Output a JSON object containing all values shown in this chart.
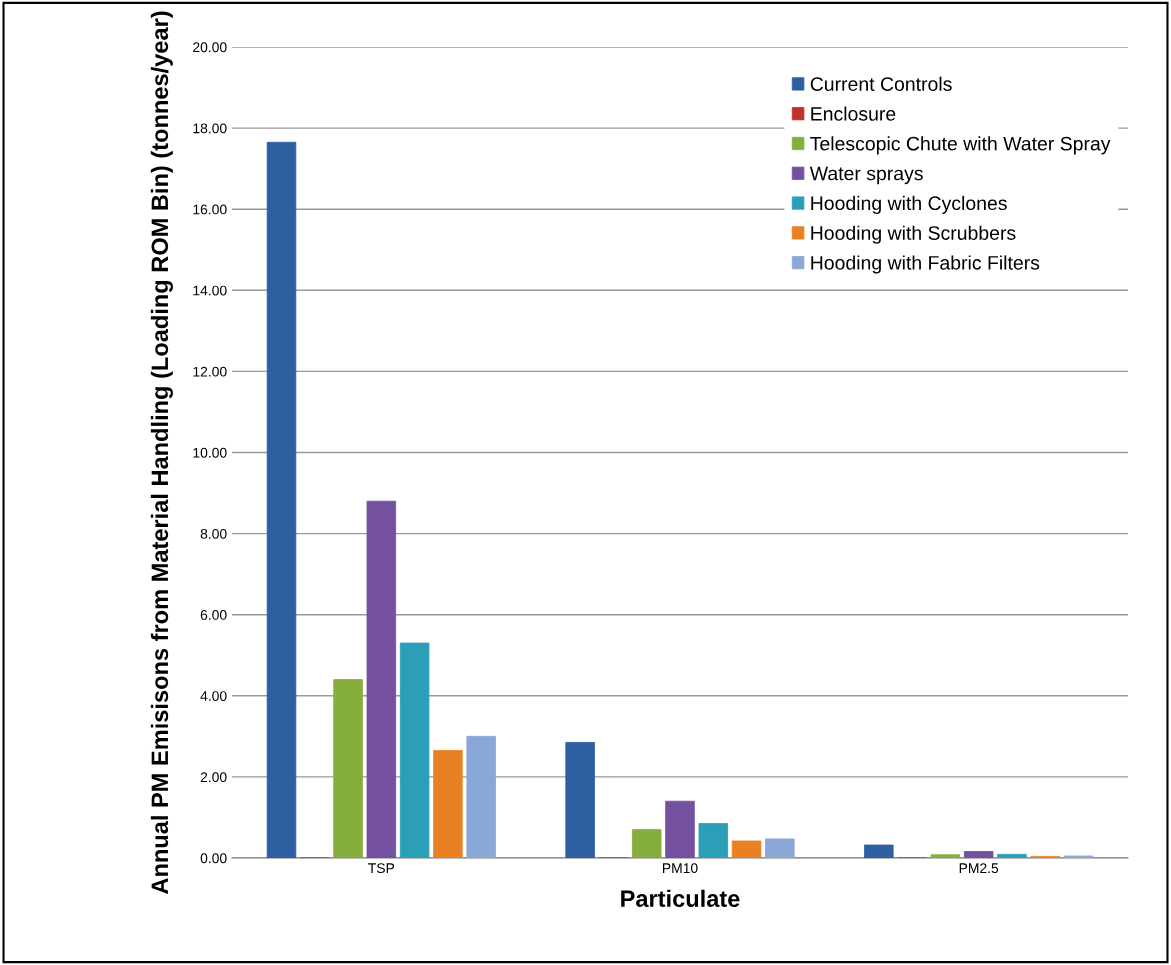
{
  "chart_data": {
    "type": "bar",
    "xlabel": "Particulate",
    "ylabel": "Annual PM Emisisons from Material Handling (Loading ROM Bin) (tonnes/year)",
    "categories": [
      "TSP",
      "PM10",
      "PM2.5"
    ],
    "series": [
      {
        "name": "Current Controls",
        "color": "#2e5fa0",
        "values": [
          17.65,
          2.85,
          0.32
        ]
      },
      {
        "name": "Enclosure",
        "color": "#c0302c",
        "values": [
          0,
          0,
          0
        ]
      },
      {
        "name": "Telescopic Chute with Water Spray",
        "color": "#86ae3c",
        "values": [
          4.4,
          0.7,
          0.08
        ]
      },
      {
        "name": "Water sprays",
        "color": "#7350a0",
        "values": [
          8.8,
          1.4,
          0.16
        ]
      },
      {
        "name": "Hooding with Cyclones",
        "color": "#2b9fb8",
        "values": [
          5.3,
          0.85,
          0.09
        ]
      },
      {
        "name": "Hooding with Scrubbers",
        "color": "#ea8024",
        "values": [
          2.65,
          0.42,
          0.04
        ]
      },
      {
        "name": "Hooding with Fabric Filters",
        "color": "#8aa8d6",
        "values": [
          3.0,
          0.47,
          0.05
        ]
      }
    ],
    "ylim": [
      0,
      20
    ],
    "yticks": [
      {
        "value": 0,
        "label": "0.00"
      },
      {
        "value": 2,
        "label": "2.00"
      },
      {
        "value": 4,
        "label": "4.00"
      },
      {
        "value": 6,
        "label": "6.00"
      },
      {
        "value": 8,
        "label": "8.00"
      },
      {
        "value": 10,
        "label": "10.00"
      },
      {
        "value": 12,
        "label": "12.00"
      },
      {
        "value": 14,
        "label": "14.00"
      },
      {
        "value": 16,
        "label": "16.00"
      },
      {
        "value": 18,
        "label": "18.00"
      },
      {
        "value": 20,
        "label": "20.00"
      }
    ],
    "grid": "y",
    "legend": "top right"
  }
}
